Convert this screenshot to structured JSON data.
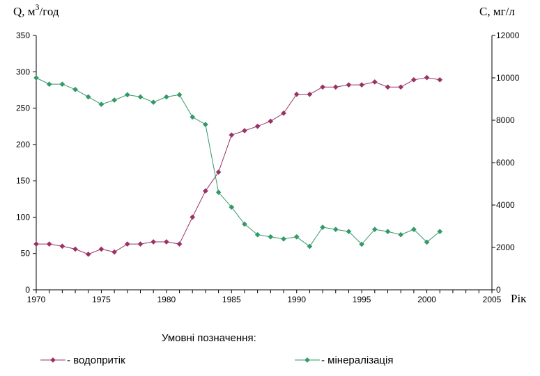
{
  "chart_data": {
    "type": "line",
    "ylabel_left": "Q, м",
    "ylabel_left_sup": "3",
    "ylabel_left_suffix": "/год",
    "ylabel_right": "C, мг/л",
    "xlabel": "Рік",
    "legend_title": "Умовні позначення:",
    "xlim": [
      1970,
      2005
    ],
    "xticks": [
      1970,
      1975,
      1980,
      1985,
      1990,
      1995,
      2000,
      2005
    ],
    "ylim_left": [
      0,
      350
    ],
    "yticks_left": [
      0,
      50,
      100,
      150,
      200,
      250,
      300,
      350
    ],
    "ylim_right": [
      0,
      12000
    ],
    "yticks_right": [
      0,
      2000,
      4000,
      6000,
      8000,
      10000,
      12000
    ],
    "x": [
      1970,
      1971,
      1972,
      1973,
      1974,
      1975,
      1976,
      1977,
      1978,
      1979,
      1980,
      1981,
      1982,
      1983,
      1984,
      1985,
      1986,
      1987,
      1988,
      1989,
      1990,
      1991,
      1992,
      1993,
      1994,
      1995,
      1996,
      1997,
      1998,
      1999,
      2000,
      2001
    ],
    "series": [
      {
        "name": "- водопритік",
        "axis": "left",
        "color": "#993366",
        "values": [
          63,
          63,
          60,
          56,
          49,
          56,
          52,
          63,
          63,
          66,
          66,
          63,
          100,
          136,
          162,
          213,
          219,
          225,
          232,
          243,
          269,
          269,
          279,
          279,
          282,
          282,
          286,
          279,
          279,
          289,
          292,
          289
        ]
      },
      {
        "name": "- мінералізація",
        "axis": "right",
        "color": "#339966",
        "values": [
          10000,
          9700,
          9700,
          9450,
          9100,
          8750,
          8950,
          9200,
          9100,
          8850,
          9100,
          9200,
          8150,
          7800,
          4600,
          3900,
          3100,
          2600,
          2500,
          2400,
          2500,
          2050,
          2950,
          2850,
          2750,
          2150,
          2850,
          2750,
          2600,
          2850,
          2250,
          2750
        ]
      }
    ]
  }
}
